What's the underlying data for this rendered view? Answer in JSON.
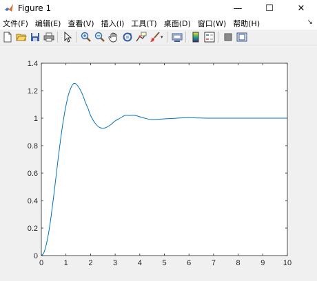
{
  "window": {
    "title": "Figure 1",
    "minimize": "—",
    "maximize": "☐",
    "close": "✕"
  },
  "menu": {
    "items": [
      "文件(F)",
      "编辑(E)",
      "查看(V)",
      "插入(I)",
      "工具(T)",
      "桌面(D)",
      "窗口(W)",
      "帮助(H)"
    ],
    "dock_arrow": "↘"
  },
  "toolbar": {
    "buttons": [
      {
        "name": "new-figure-icon"
      },
      {
        "name": "open-file-icon"
      },
      {
        "name": "save-icon"
      },
      {
        "name": "print-icon"
      },
      {
        "name": "pointer-icon"
      },
      {
        "name": "zoom-in-icon"
      },
      {
        "name": "zoom-out-icon"
      },
      {
        "name": "pan-hand-icon"
      },
      {
        "name": "rotate-3d-icon"
      },
      {
        "name": "data-cursor-icon"
      },
      {
        "name": "brush-icon"
      },
      {
        "name": "link-plot-icon"
      },
      {
        "name": "colorbar-icon"
      },
      {
        "name": "legend-icon"
      },
      {
        "name": "hide-plot-tools-icon"
      },
      {
        "name": "show-plot-tools-icon"
      }
    ]
  },
  "colors": {
    "line": "#0072bd",
    "axis": "#262626"
  },
  "chart_data": {
    "type": "line",
    "xlim": [
      0,
      10
    ],
    "ylim": [
      0,
      1.4
    ],
    "x_ticks": [
      "0",
      "1",
      "2",
      "3",
      "4",
      "5",
      "6",
      "7",
      "8",
      "9",
      "10"
    ],
    "y_ticks": [
      "0",
      "0.2",
      "0.4",
      "0.6",
      "0.8",
      "1",
      "1.2",
      "1.4"
    ],
    "grid": false,
    "series": [
      {
        "x": [
          0,
          0.1,
          0.2,
          0.3,
          0.4,
          0.5,
          0.6,
          0.7,
          0.8,
          0.9,
          1.0,
          1.1,
          1.2,
          1.3,
          1.4,
          1.5,
          1.6,
          1.7,
          1.8,
          1.9,
          2.0,
          2.2,
          2.4,
          2.6,
          2.8,
          3.0,
          3.2,
          3.4,
          3.6,
          3.8,
          4.0,
          4.2,
          4.5,
          5.0,
          5.5,
          6.0,
          6.5,
          7.0,
          8.0,
          9.0,
          10.0
        ],
        "y": [
          0,
          0.02,
          0.08,
          0.17,
          0.29,
          0.43,
          0.58,
          0.73,
          0.87,
          0.99,
          1.09,
          1.17,
          1.22,
          1.25,
          1.25,
          1.23,
          1.2,
          1.16,
          1.11,
          1.07,
          1.02,
          0.96,
          0.93,
          0.93,
          0.95,
          0.98,
          1.0,
          1.02,
          1.02,
          1.02,
          1.01,
          1.0,
          0.99,
          0.995,
          1.0,
          1.003,
          1.001,
          1.0,
          1.0,
          1.0,
          1.0
        ]
      }
    ]
  }
}
